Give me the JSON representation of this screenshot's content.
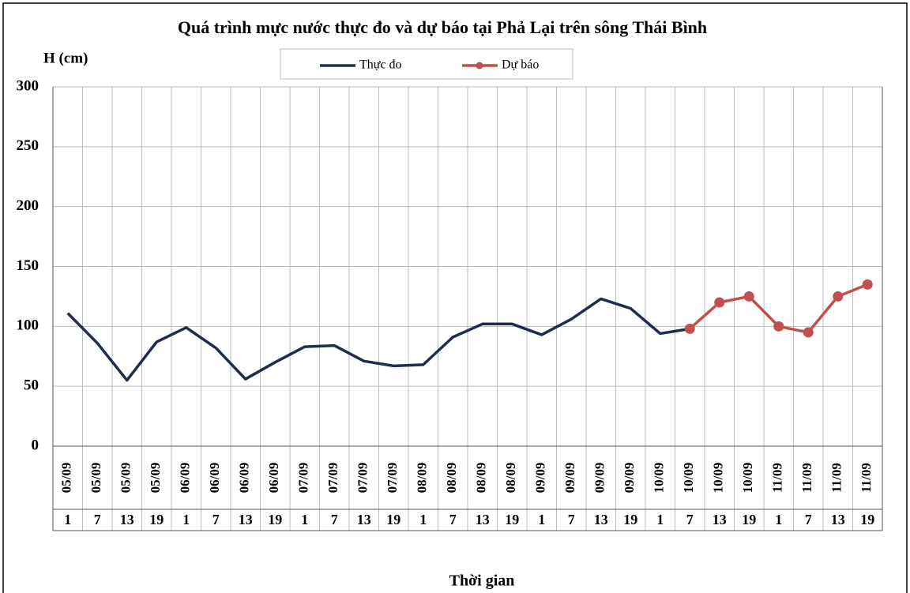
{
  "chart_data": {
    "type": "line",
    "title": "Quá trình mực nước thực đo và dự báo tại Phả Lại trên sông Thái Bình",
    "y_label": "H (cm)",
    "x_label": "Thời gian",
    "categories": [
      "05/09",
      "05/09",
      "05/09",
      "05/09",
      "06/09",
      "06/09",
      "06/09",
      "06/09",
      "07/09",
      "07/09",
      "07/09",
      "07/09",
      "08/09",
      "08/09",
      "08/09",
      "08/09",
      "09/09",
      "09/09",
      "09/09",
      "09/09",
      "10/09",
      "10/09",
      "10/09",
      "10/09",
      "11/09",
      "11/09",
      "11/09",
      "11/09"
    ],
    "hours": [
      "1",
      "7",
      "13",
      "19",
      "1",
      "7",
      "13",
      "19",
      "1",
      "7",
      "13",
      "19",
      "1",
      "7",
      "13",
      "19",
      "1",
      "7",
      "13",
      "19",
      "1",
      "7",
      "13",
      "19",
      "1",
      "7",
      "13",
      "19"
    ],
    "series": [
      {
        "name": "Thực đo",
        "color": "#1f2d4d",
        "marker": false,
        "values": [
          111,
          86,
          55,
          87,
          99,
          82,
          56,
          70,
          83,
          84,
          71,
          67,
          68,
          91,
          102,
          102,
          93,
          106,
          123,
          115,
          94,
          98,
          null,
          null,
          null,
          null,
          null,
          null
        ]
      },
      {
        "name": "Dự báo",
        "color": "#c0504d",
        "marker": true,
        "values": [
          null,
          null,
          null,
          null,
          null,
          null,
          null,
          null,
          null,
          null,
          null,
          null,
          null,
          null,
          null,
          null,
          null,
          null,
          null,
          null,
          null,
          98,
          120,
          125,
          100,
          95,
          125,
          135
        ]
      }
    ],
    "ylim": [
      0,
      300
    ],
    "yticks": [
      0,
      50,
      100,
      150,
      200,
      250,
      300
    ],
    "grid": true
  }
}
